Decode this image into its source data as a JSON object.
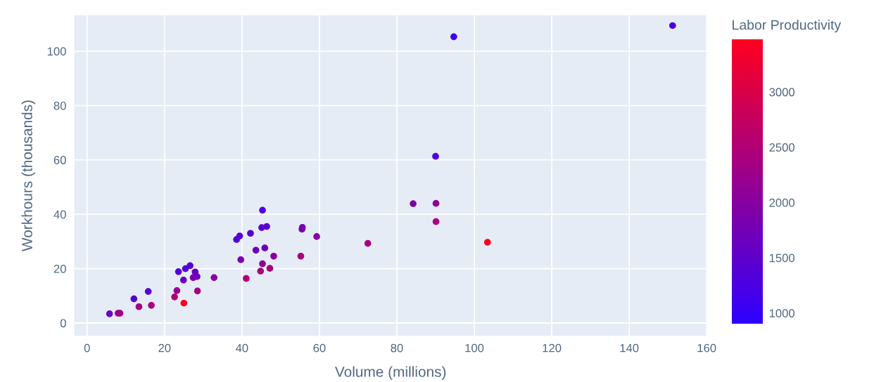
{
  "chart_data": {
    "type": "scatter",
    "xlabel": "Volume (millions)",
    "ylabel": "Workhours (thousands)",
    "clabel": "Labor Productivity",
    "xlim": [
      -3.3,
      160.1
    ],
    "ylim": [
      -4.7,
      113.2
    ],
    "xticks": [
      0,
      20,
      40,
      60,
      80,
      100,
      120,
      140,
      160
    ],
    "yticks": [
      0,
      20,
      40,
      60,
      80,
      100
    ],
    "clim": [
      905,
      3476
    ],
    "cticks": [
      1000,
      1500,
      2000,
      2500,
      3000
    ],
    "grid": true,
    "marker": "circle",
    "x": [
      5.8,
      8.0,
      8.5,
      12.1,
      13.4,
      15.8,
      16.6,
      22.6,
      23.2,
      25.0,
      23.6,
      25.4,
      26.6,
      24.9,
      27.9,
      27.4,
      28.4,
      28.5,
      32.8,
      41.1,
      38.6,
      39.4,
      39.7,
      45.3,
      45.1,
      46.4,
      42.2,
      43.6,
      45.9,
      48.2,
      45.3,
      44.8,
      47.2,
      55.6,
      55.5,
      59.3,
      55.2,
      72.5,
      84.2,
      94.7,
      151.2,
      90.0,
      90.1,
      90.1,
      103.4
    ],
    "values": [
      3.4,
      3.6,
      3.6,
      8.9,
      6.0,
      11.6,
      6.5,
      9.6,
      11.9,
      7.3,
      18.9,
      20.0,
      21.1,
      15.8,
      18.8,
      16.7,
      17.1,
      11.8,
      16.7,
      16.4,
      30.7,
      32.0,
      23.3,
      41.5,
      35.1,
      35.5,
      33.0,
      26.8,
      27.6,
      24.6,
      21.8,
      19.1,
      20.1,
      35.2,
      34.5,
      31.8,
      24.6,
      29.3,
      43.9,
      105.3,
      109.4,
      61.3,
      44.0,
      37.3,
      29.7
    ],
    "cvalues": [
      1600,
      2300,
      2300,
      1400,
      2300,
      1400,
      2400,
      2500,
      2200,
      3400,
      1350,
      1400,
      1400,
      1600,
      1650,
      1800,
      1700,
      2400,
      2000,
      2500,
      1350,
      1400,
      1800,
      1300,
      1400,
      1400,
      1400,
      1700,
      1700,
      2000,
      2100,
      2400,
      2400,
      1800,
      1800,
      2000,
      2400,
      2400,
      1900,
      1050,
      1300,
      1350,
      2100,
      2400,
      3450
    ]
  }
}
